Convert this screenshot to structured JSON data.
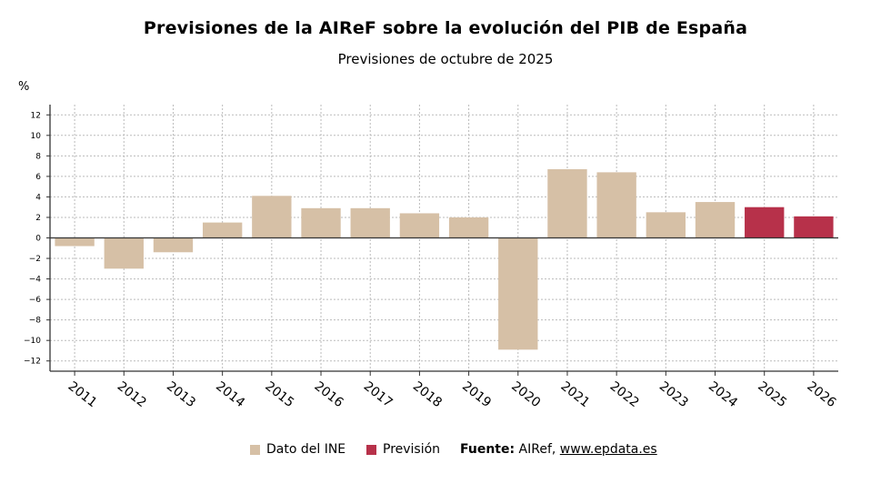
{
  "chart_data": {
    "type": "bar",
    "title": "Previsiones de la AIReF sobre la evolución del PIB de España",
    "subtitle": "Previsiones de octubre de 2025",
    "ylabel": "%",
    "categories": [
      "2011",
      "2012",
      "2013",
      "2014",
      "2015",
      "2016",
      "2017",
      "2018",
      "2019",
      "2020",
      "2021",
      "2022",
      "2023",
      "2024",
      "2025",
      "2026"
    ],
    "values": [
      -0.8,
      -3.0,
      -1.4,
      1.5,
      4.1,
      2.9,
      2.9,
      2.4,
      2.0,
      -10.9,
      6.7,
      6.4,
      2.5,
      3.5,
      3.0,
      2.1
    ],
    "series_type": [
      "ine",
      "ine",
      "ine",
      "ine",
      "ine",
      "ine",
      "ine",
      "ine",
      "ine",
      "ine",
      "ine",
      "ine",
      "ine",
      "ine",
      "prevision",
      "prevision"
    ],
    "ylim": [
      -13,
      13
    ],
    "yticks": [
      12,
      10,
      8,
      6,
      4,
      2,
      0,
      -2,
      -4,
      -6,
      -8,
      -10,
      -12
    ],
    "ytick_labels": [
      "12",
      "10",
      "8",
      "6",
      "4",
      "2",
      "0",
      "−2",
      "−4",
      "−6",
      "−8",
      "−10",
      "−12"
    ],
    "grid": true,
    "legend": [
      {
        "label": "Dato del INE",
        "color": "#d6c0a6"
      },
      {
        "label": "Previsión",
        "color": "#b7314a"
      }
    ],
    "legend_position": "bottom",
    "colors": {
      "ine": "#d6c0a6",
      "prevision": "#b7314a",
      "axis": "#333333",
      "grid": "#bbbbbb"
    }
  },
  "source": {
    "label": "Fuente:",
    "text": "AIRef,",
    "url_text": "www.epdata.es"
  }
}
